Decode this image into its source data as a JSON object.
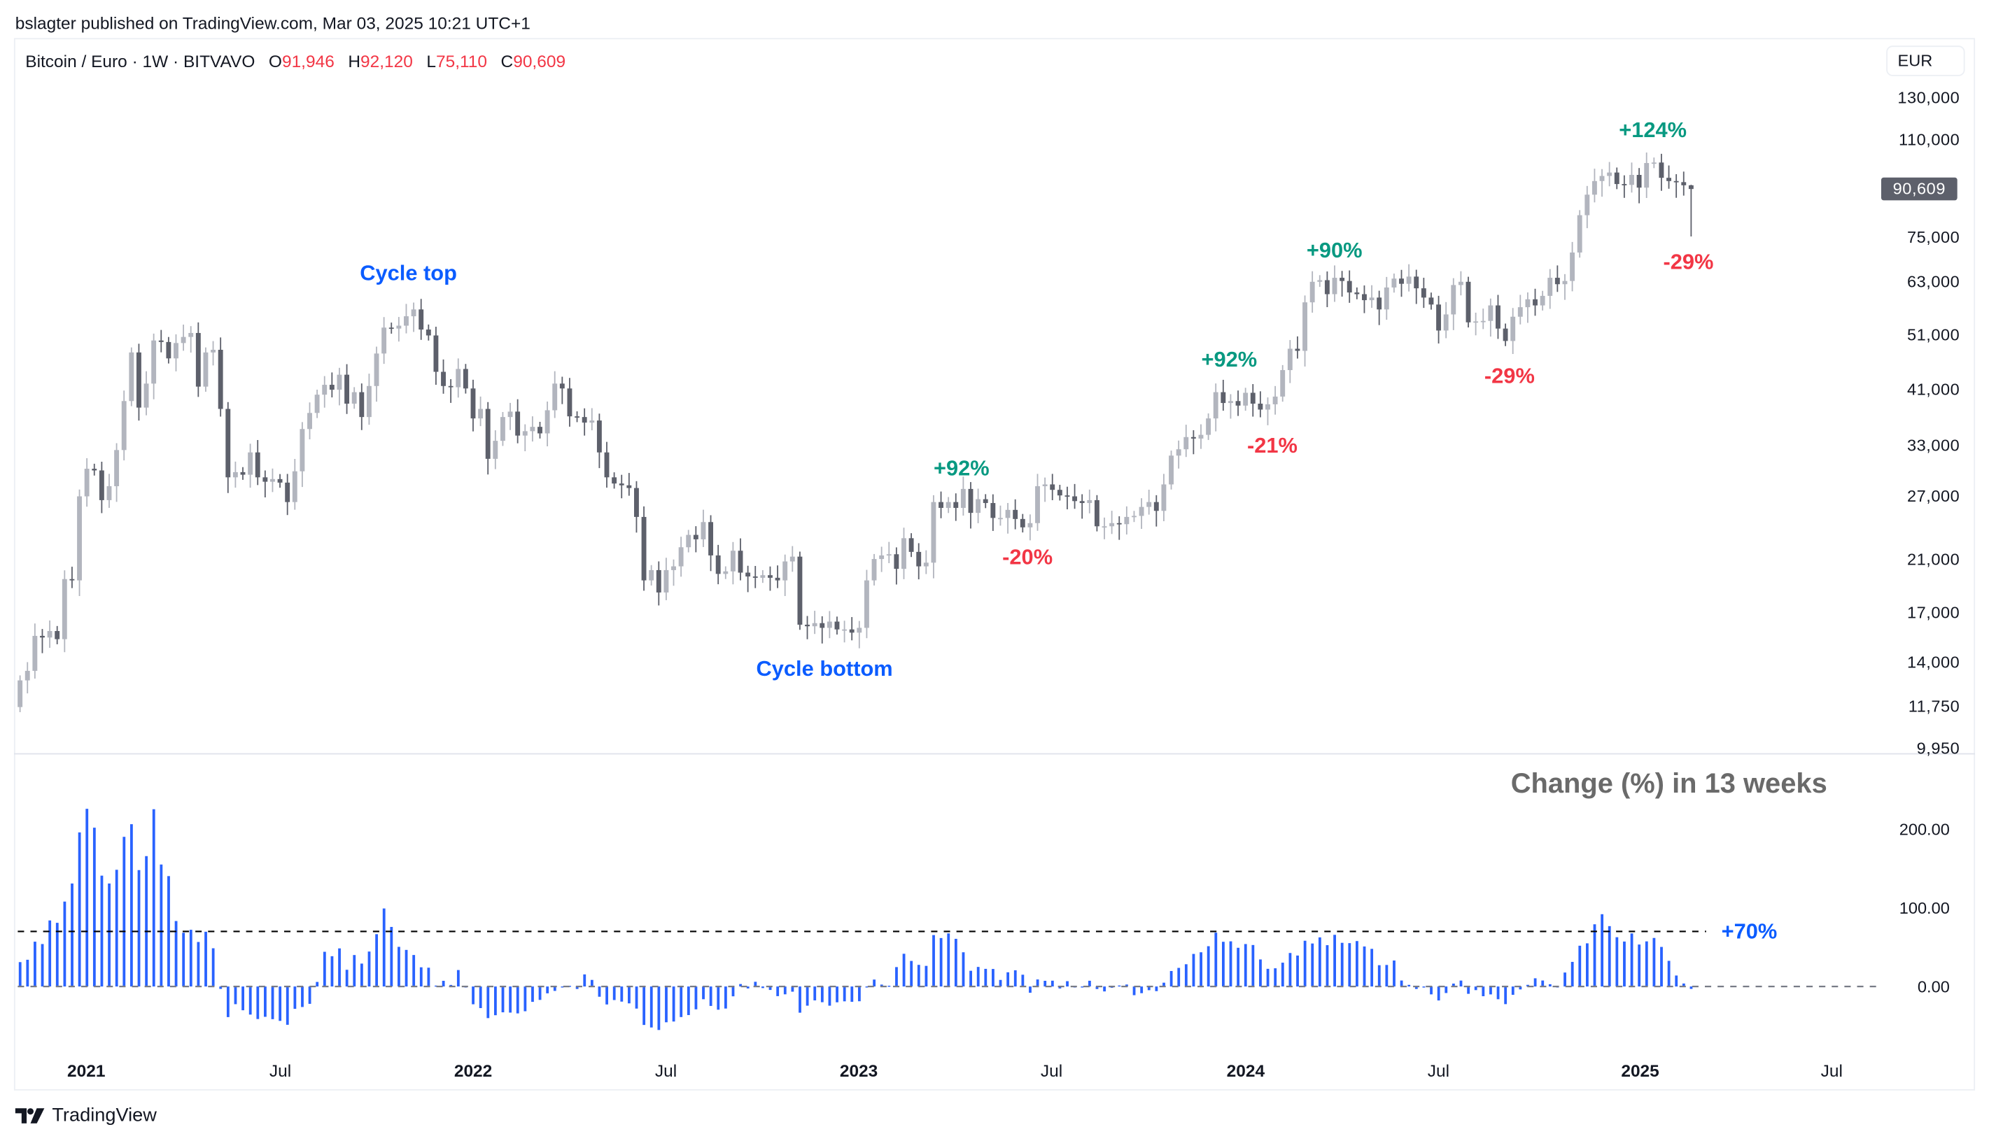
{
  "header": {
    "published": "bslagter published on TradingView.com, Mar 03, 2025 10:21 UTC+1"
  },
  "legend": {
    "symbol": "Bitcoin / Euro · 1W · BITVAVO",
    "o_label": "O",
    "o": "91,946",
    "h_label": "H",
    "h": "92,120",
    "l_label": "L",
    "l": "75,110",
    "c_label": "C",
    "c": "90,609"
  },
  "currency_button": "EUR",
  "last_price_label": "90,609",
  "footer": {
    "logo_text": "TradingView"
  },
  "colors": {
    "up_candle": "#b2b5be",
    "down_candle": "#5d606b",
    "histogram": "#2962ff",
    "gain_label": "#089981",
    "loss_label": "#f23645",
    "annotation_blue": "#0b5cff",
    "indicator_title": "#6a6a6a"
  },
  "chart_data": [
    {
      "type": "candlestick",
      "title": "Bitcoin / Euro · 1W · BITVAVO",
      "y_scale": "log",
      "y_ticks": [
        "130,000",
        "110,000",
        "75,000",
        "63,000",
        "51,000",
        "41,000",
        "33,000",
        "27,000",
        "21,000",
        "17,000",
        "14,000",
        "11,750",
        "9,950"
      ],
      "y_tick_values": [
        130000,
        110000,
        75000,
        63000,
        51000,
        41000,
        33000,
        27000,
        21000,
        17000,
        14000,
        11750,
        9950
      ],
      "x_ticks": [
        {
          "label": "2021",
          "bold": true
        },
        {
          "label": "Jul",
          "bold": false
        },
        {
          "label": "2022",
          "bold": true
        },
        {
          "label": "Jul",
          "bold": false
        },
        {
          "label": "2023",
          "bold": true
        },
        {
          "label": "Jul",
          "bold": false
        },
        {
          "label": "2024",
          "bold": true
        },
        {
          "label": "Jul",
          "bold": false
        },
        {
          "label": "2025",
          "bold": true
        },
        {
          "label": "Jul",
          "bold": false
        }
      ],
      "first_week": "2020-11-02",
      "interval": "1W",
      "first_open": 11700,
      "last_candle": {
        "open": 91946,
        "high": 92120,
        "low": 75110,
        "close": 90609
      },
      "weekly_close": [
        13000,
        13500,
        15500,
        15400,
        15800,
        15300,
        19400,
        19300,
        26900,
        30000,
        29800,
        26500,
        28000,
        32300,
        39200,
        47500,
        38200,
        42000,
        49800,
        49500,
        46400,
        49300,
        50500,
        51300,
        41500,
        47500,
        48000,
        38000,
        29000,
        29600,
        29300,
        32000,
        29000,
        28500,
        28800,
        28400,
        26300,
        29700,
        35100,
        37400,
        40200,
        41800,
        41000,
        43500,
        38800,
        40600,
        36800,
        41600,
        47300,
        52400,
        52200,
        52800,
        54800,
        56300,
        52000,
        50800,
        44000,
        41600,
        41400,
        44500,
        41200,
        36600,
        38000,
        31200,
        33500,
        36800,
        37600,
        34200,
        34800,
        35400,
        34500,
        37800,
        42000,
        41200,
        36900,
        36800,
        36000,
        36300,
        32000,
        29000,
        28300,
        28100,
        27800,
        24800,
        19300,
        20100,
        18400,
        20100,
        20400,
        22000,
        23100,
        22700,
        24300,
        21300,
        19800,
        20000,
        21700,
        19900,
        19600,
        19500,
        19700,
        19500,
        19300,
        20800,
        21200,
        16200,
        16100,
        16300,
        16000,
        16400,
        15900,
        15900,
        15700,
        16000,
        19300,
        21000,
        21300,
        21400,
        20200,
        22800,
        21600,
        20400,
        20700,
        26300,
        25700,
        26300,
        25700,
        27700,
        25200,
        26600,
        26200,
        24700,
        24700,
        25500,
        24600,
        23800,
        24200,
        28000,
        28200,
        27600,
        27000,
        26900,
        26400,
        26200,
        26500,
        23900,
        23900,
        24200,
        24100,
        24800,
        24900,
        25800,
        26300,
        25400,
        28200,
        31600,
        32400,
        34000,
        33800,
        34300,
        36600,
        40600,
        38900,
        39200,
        38500,
        40500,
        38800,
        37900,
        38700,
        39900,
        44300,
        48200,
        47800,
        57900,
        62800,
        63200,
        59800,
        63800,
        63000,
        60200,
        59800,
        58400,
        59000,
        56300,
        61400,
        63600,
        62300,
        64100,
        61200,
        59000,
        57400,
        51800,
        55200,
        62000,
        62800,
        53500,
        53700,
        53800,
        57200,
        52200,
        49700,
        54700,
        56800,
        58600,
        57200,
        59400,
        63800,
        62200,
        63000,
        70500,
        81700,
        88600,
        93500,
        95400,
        96700,
        92400,
        92100,
        95800,
        91100,
        100400,
        100600,
        94700,
        93500,
        93100,
        91946,
        90609
      ],
      "annotations": [
        {
          "text": "Cycle top",
          "color": "blue"
        },
        {
          "text": "Cycle bottom",
          "color": "blue"
        },
        {
          "text": "+92%",
          "color": "green"
        },
        {
          "text": "-20%",
          "color": "red"
        },
        {
          "text": "+92%",
          "color": "green"
        },
        {
          "text": "-21%",
          "color": "red"
        },
        {
          "text": "+90%",
          "color": "green"
        },
        {
          "text": "-29%",
          "color": "red"
        },
        {
          "text": "+124%",
          "color": "green"
        },
        {
          "text": "-29%",
          "color": "red"
        }
      ]
    },
    {
      "type": "bar",
      "title": "Change (%) in 13 weeks",
      "y_ticks": [
        "200.00",
        "100.00",
        "0.00"
      ],
      "ylim": [
        -60,
        250
      ],
      "first_13_values": [
        31,
        34,
        57,
        54,
        84,
        81,
        108,
        131,
        196,
        226,
        202,
        141,
        131
      ],
      "reference_line": {
        "value": 70,
        "label": "+70%",
        "style": "dashed"
      },
      "zero_line": {
        "value": 0,
        "style": "dashed"
      }
    }
  ]
}
